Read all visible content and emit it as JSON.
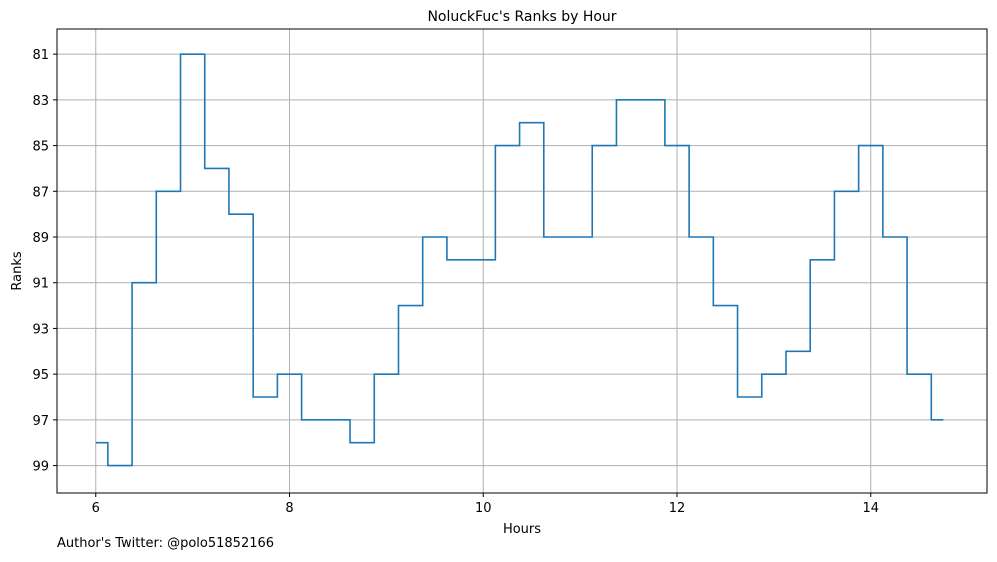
{
  "chart_data": {
    "type": "line",
    "style": "step",
    "title": "NoluckFuc's Ranks by Hour",
    "xlabel": "Hours",
    "ylabel": "Ranks",
    "xlim": [
      5.6,
      15.2
    ],
    "ylim": [
      100.2,
      79.9
    ],
    "y_inverted": true,
    "xticks": [
      6,
      8,
      10,
      12,
      14
    ],
    "yticks": [
      81,
      83,
      85,
      87,
      89,
      91,
      93,
      95,
      97,
      99
    ],
    "grid": true,
    "color": "#1f77b4",
    "series": [
      {
        "x": [
          6.0,
          6.25,
          6.5,
          6.75,
          7.0,
          7.25,
          7.5,
          7.75,
          8.0,
          8.25,
          8.5,
          8.75,
          9.0,
          9.25,
          9.5,
          9.75,
          10.0,
          10.25,
          10.5,
          10.75,
          11.0,
          11.25,
          11.5,
          11.75,
          12.0,
          12.25,
          12.5,
          12.75,
          13.0,
          13.25,
          13.5,
          13.75,
          14.0,
          14.25,
          14.5,
          14.75
        ],
        "y": [
          98,
          99,
          91,
          87,
          81,
          86,
          88,
          96,
          95,
          97,
          97,
          98,
          95,
          92,
          89,
          90,
          90,
          85,
          84,
          89,
          89,
          85,
          83,
          83,
          85,
          89,
          92,
          96,
          95,
          94,
          90,
          87,
          85,
          89,
          95,
          97
        ]
      }
    ]
  },
  "footer": {
    "twitter": "Author's Twitter: @polo51852166"
  }
}
